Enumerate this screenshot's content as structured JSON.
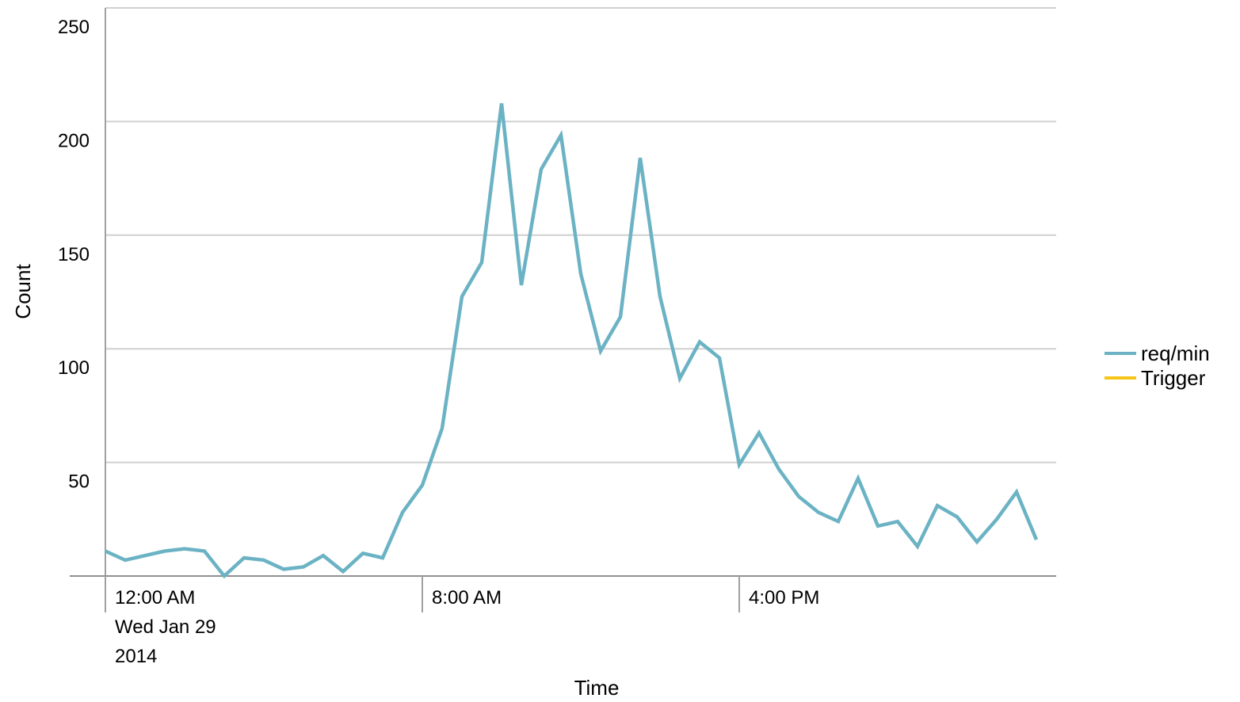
{
  "chart_data": {
    "type": "line",
    "xlabel": "Time",
    "ylabel": "Count",
    "ylim": [
      0,
      250
    ],
    "yticks": [
      50,
      100,
      150,
      200,
      250
    ],
    "grid": true,
    "legend_position": "right",
    "xticks": [
      {
        "hour": 0,
        "lines": [
          "12:00 AM",
          "Wed Jan 29",
          "2014"
        ]
      },
      {
        "hour": 8,
        "lines": [
          "8:00 AM"
        ]
      },
      {
        "hour": 16,
        "lines": [
          "4:00 PM"
        ]
      }
    ],
    "x_unit": "hours since 12:00 AM Wed Jan 29 2014",
    "xlim": [
      0,
      24
    ],
    "series": [
      {
        "name": "req/min",
        "color": "#6bb3c4",
        "x": [
          0,
          0.5,
          1,
          1.5,
          2,
          2.5,
          3,
          3.5,
          4,
          4.5,
          5,
          5.5,
          6,
          6.5,
          7,
          7.5,
          8,
          8.5,
          9,
          9.5,
          10,
          10.5,
          11,
          11.5,
          12,
          12.5,
          13,
          13.5,
          14,
          14.5,
          15,
          15.5,
          16,
          16.5,
          17,
          17.5,
          18,
          18.5,
          19,
          19.5,
          20,
          20.5,
          21,
          21.5,
          22,
          22.5,
          23,
          23.5
        ],
        "values": [
          11,
          7,
          9,
          11,
          12,
          11,
          0,
          8,
          7,
          3,
          4,
          9,
          2,
          10,
          8,
          28,
          40,
          65,
          123,
          138,
          208,
          128,
          179,
          194,
          133,
          99,
          114,
          184,
          123,
          87,
          103,
          96,
          49,
          63,
          47,
          35,
          28,
          24,
          43,
          22,
          24,
          13,
          31,
          26,
          15,
          25,
          37,
          16
        ]
      },
      {
        "name": "Trigger",
        "color": "#f5c518",
        "x": [],
        "values": []
      }
    ]
  }
}
